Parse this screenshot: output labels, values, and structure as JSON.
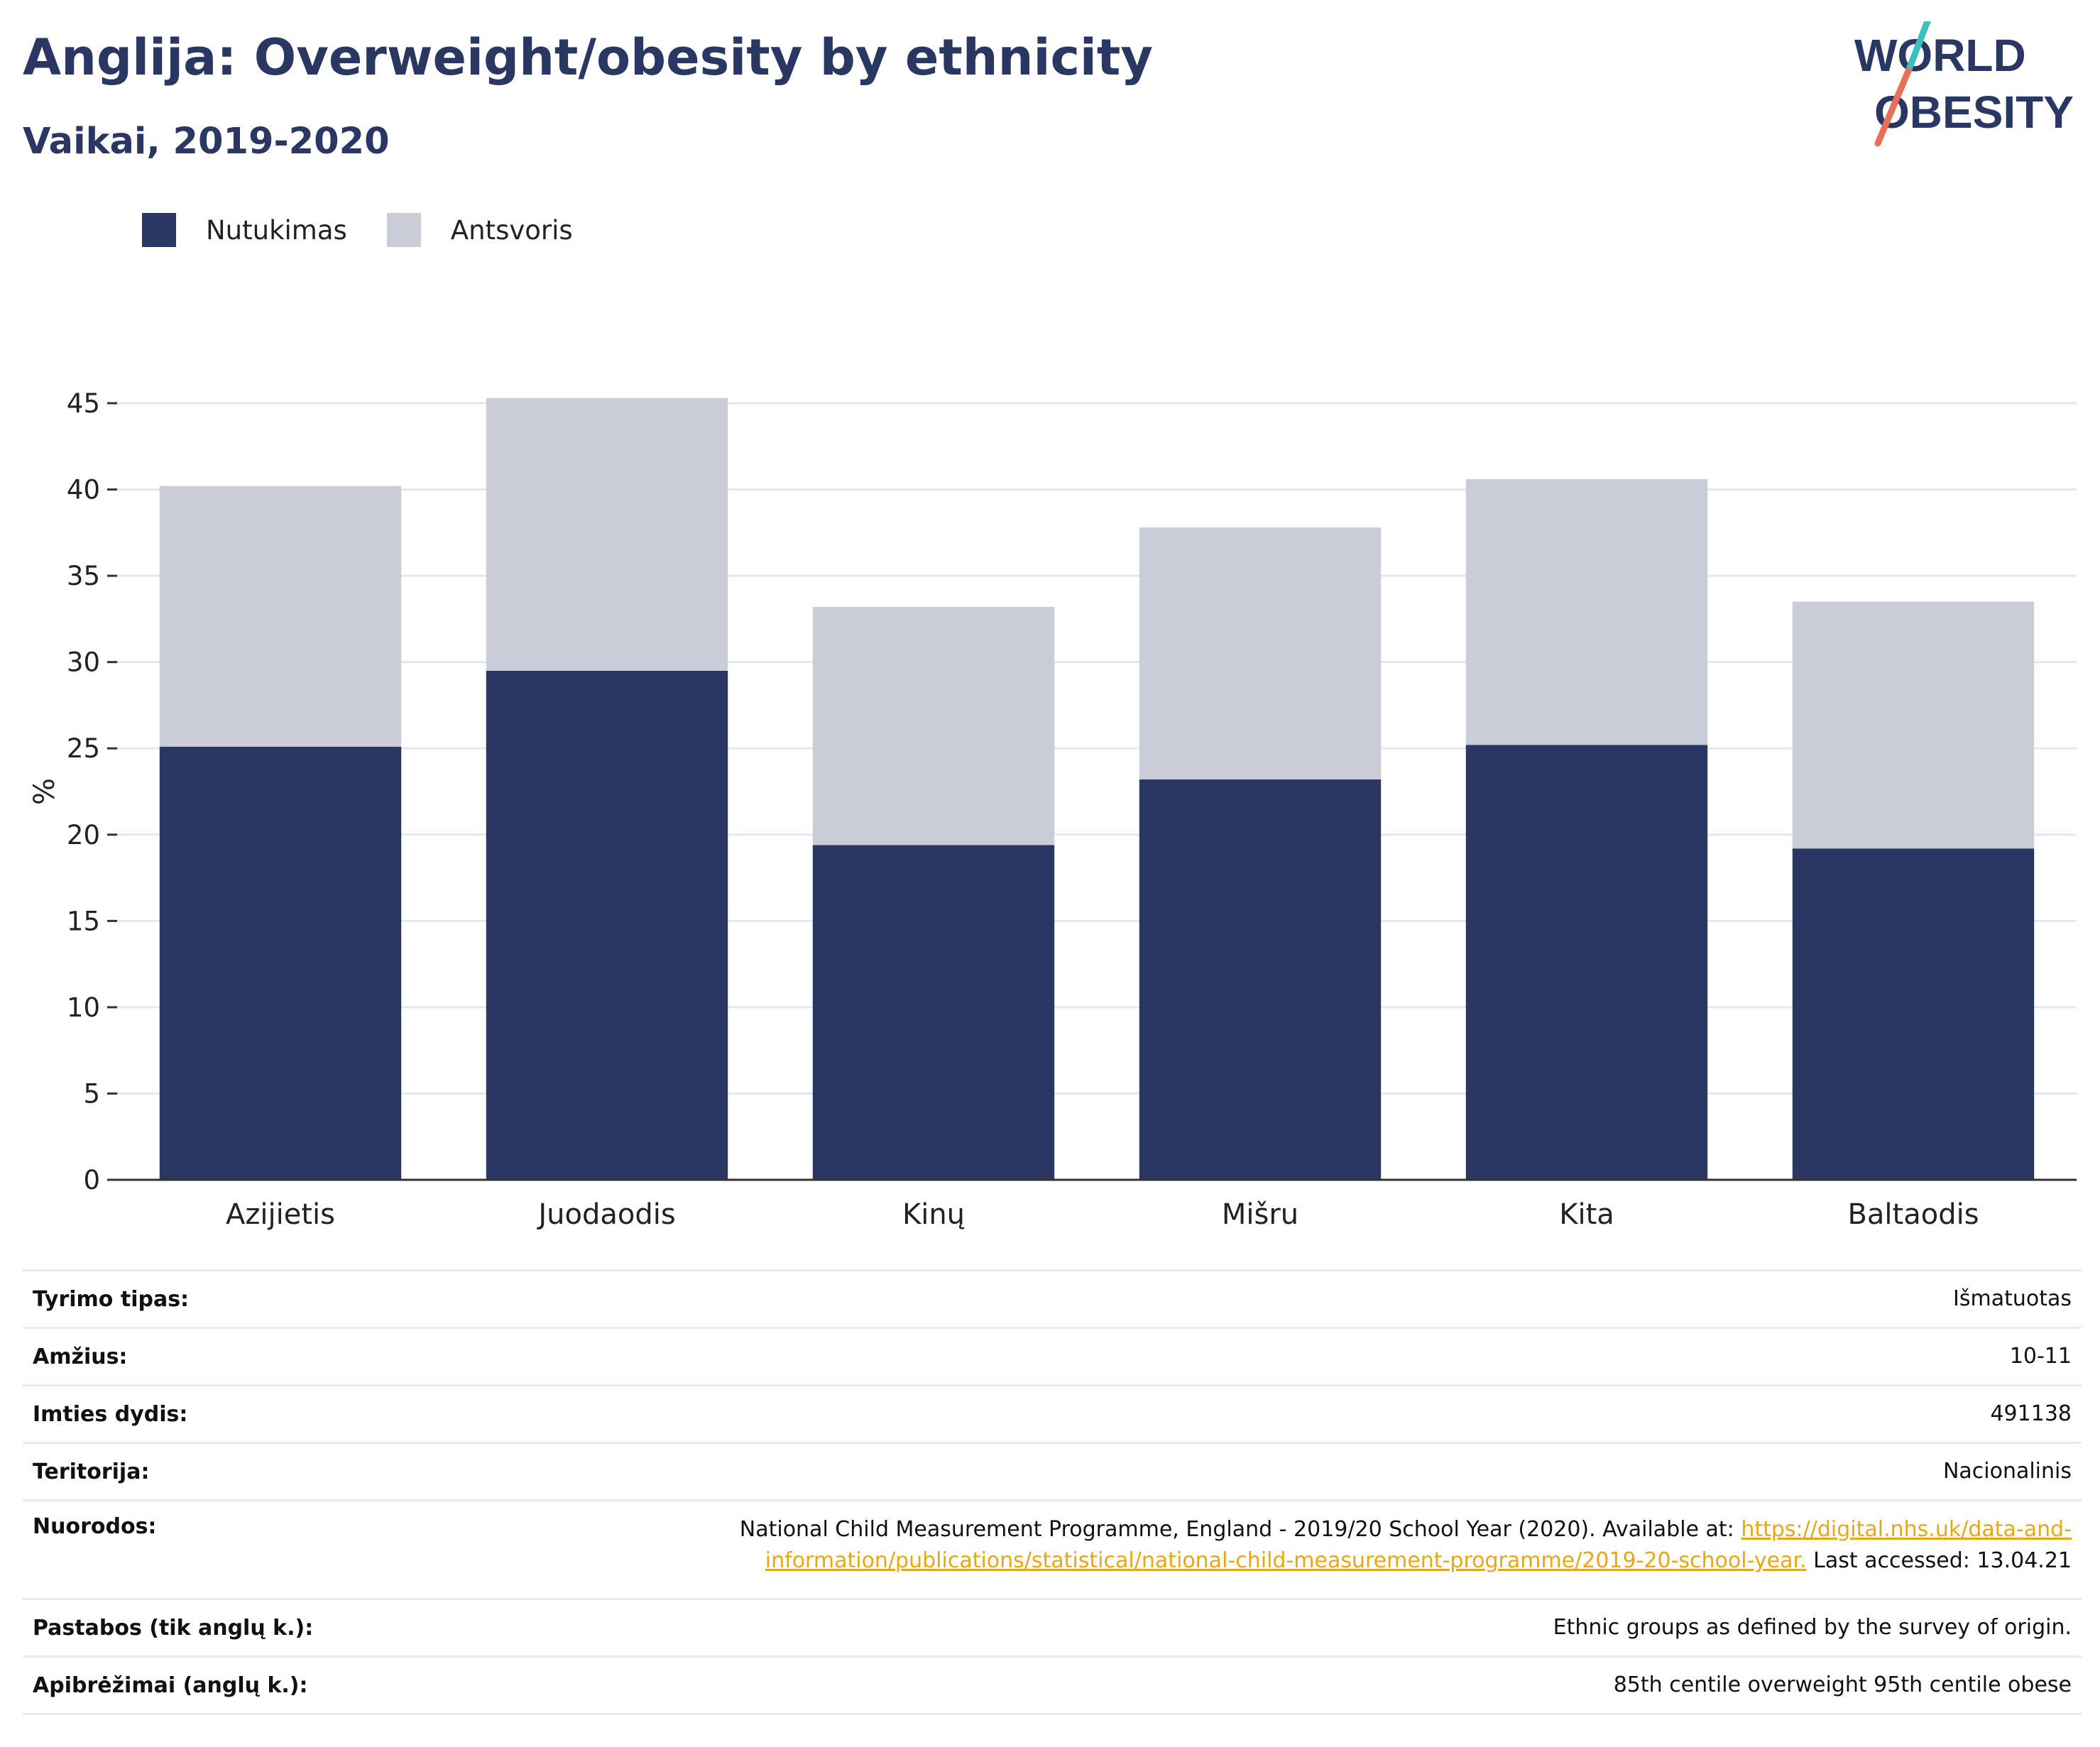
{
  "header": {
    "title": "Anglija: Overweight/obesity by ethnicity",
    "subtitle": "Vaikai, 2019-2020"
  },
  "logo": {
    "line1": "WORLD",
    "line2": "OBESITY",
    "colors": {
      "text": "#2a3762",
      "slash_top": "#3bbfbf",
      "slash_bottom": "#e8705a"
    }
  },
  "legend": {
    "items": [
      {
        "label": "Nutukimas",
        "color": "#2a3762"
      },
      {
        "label": "Antsvoris",
        "color": "#caccd7"
      }
    ]
  },
  "chart_data": {
    "type": "bar",
    "stacked": true,
    "categories": [
      "Azijietis",
      "Juodaodis",
      "Kinų",
      "Mišru",
      "Kita",
      "Baltaodis"
    ],
    "series": [
      {
        "name": "Nutukimas",
        "color": "#2a3762",
        "values": [
          25.1,
          29.5,
          19.4,
          23.2,
          25.2,
          19.2
        ]
      },
      {
        "name": "Antsvoris",
        "color": "#caccd7",
        "values": [
          15.1,
          15.8,
          13.8,
          14.6,
          15.4,
          14.3
        ]
      }
    ],
    "ylabel": "%",
    "ylim": [
      0,
      45
    ],
    "yticks": [
      0,
      5,
      10,
      15,
      20,
      25,
      30,
      35,
      40,
      45
    ],
    "grid": true,
    "legend_position": "top-left"
  },
  "info": {
    "survey_type": {
      "label": "Tyrimo tipas:",
      "value": "Išmatuotas"
    },
    "age": {
      "label": "Amžius:",
      "value": "10-11"
    },
    "sample_size": {
      "label": "Imties dydis:",
      "value": "491138"
    },
    "territory": {
      "label": "Teritorija:",
      "value": "Nacionalinis"
    },
    "references": {
      "label": "Nuorodos:",
      "text_before": "National Child Measurement Programme, England - 2019/20 School Year (2020). Available at: ",
      "link_line1": "https://digital.nhs.uk/data-and-",
      "link_line2": "information/publications/statistical/national-child-measurement-programme/2019-20-school-year.",
      "text_after": " Last accessed: 13.04.21"
    },
    "notes": {
      "label": "Pastabos (tik anglų k.):",
      "value": "Ethnic groups as defined by the survey of origin."
    },
    "definitions": {
      "label": "Apibrėžimai (anglų k.):",
      "value": "85th centile overweight 95th centile obese"
    }
  }
}
